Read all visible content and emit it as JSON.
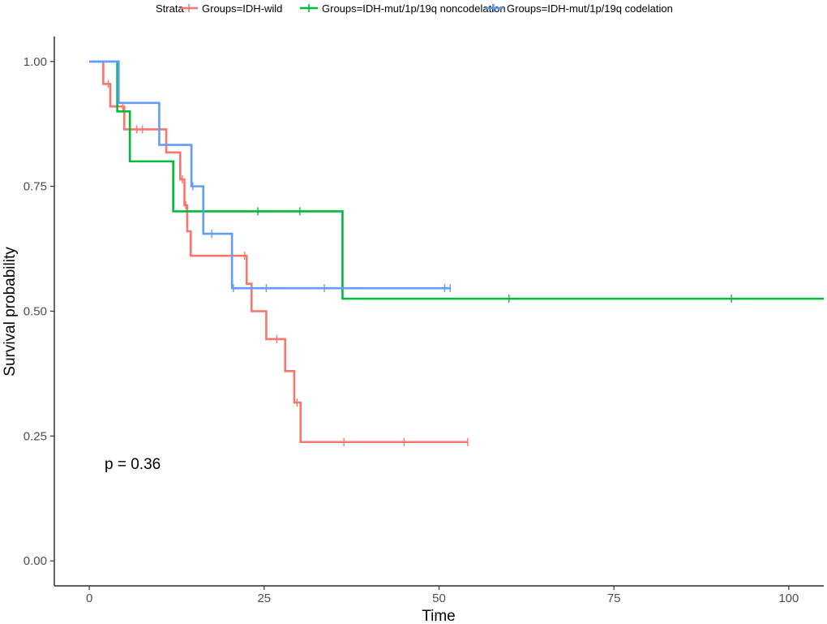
{
  "chart_data": {
    "type": "line",
    "subtype": "kaplan-meier step",
    "xlabel": "Time",
    "ylabel": "Survival probability",
    "xlim": [
      -5,
      105
    ],
    "ylim": [
      -0.05,
      1.05
    ],
    "xticks": [
      0,
      25,
      50,
      75,
      100
    ],
    "xtick_labels": [
      "0",
      "25",
      "50",
      "75",
      "100"
    ],
    "yticks": [
      0,
      0.25,
      0.5,
      0.75,
      1
    ],
    "ytick_labels": [
      "0.00",
      "0.25",
      "0.50",
      "0.75",
      "1.00"
    ],
    "grid": false,
    "legend": {
      "position": "top",
      "title": "Strata",
      "entries": [
        "Groups=IDH-wild",
        "Groups=IDH-mut/1p/19q noncodelation",
        "Groups=IDH-mut/1p/19q codelation"
      ]
    },
    "annotation": "p = 0.36",
    "series": [
      {
        "name": "Groups=IDH-wild",
        "color": "#F8766D",
        "steps": [
          [
            0,
            1.0
          ],
          [
            2,
            0.955
          ],
          [
            3,
            0.91
          ],
          [
            5,
            0.864
          ],
          [
            11,
            0.818
          ],
          [
            13,
            0.764
          ],
          [
            13.6,
            0.712
          ],
          [
            14,
            0.66
          ],
          [
            14.5,
            0.611
          ],
          [
            22.5,
            0.555
          ],
          [
            23.2,
            0.5
          ],
          [
            25.3,
            0.444
          ],
          [
            28,
            0.38
          ],
          [
            29.3,
            0.317
          ],
          [
            30.2,
            0.238
          ],
          [
            54.1,
            0.238
          ]
        ],
        "censored": [
          [
            2.7,
            0.955
          ],
          [
            4.8,
            0.91
          ],
          [
            6.8,
            0.864
          ],
          [
            7.6,
            0.864
          ],
          [
            13.3,
            0.764
          ],
          [
            13.8,
            0.712
          ],
          [
            22.2,
            0.611
          ],
          [
            26.8,
            0.444
          ],
          [
            29.7,
            0.317
          ],
          [
            36.4,
            0.238
          ],
          [
            45,
            0.238
          ],
          [
            54.1,
            0.238
          ]
        ]
      },
      {
        "name": "Groups=IDH-mut/1p/19q noncodelation",
        "color": "#00BA38",
        "steps": [
          [
            0,
            1.0
          ],
          [
            4,
            0.9
          ],
          [
            5.8,
            0.8
          ],
          [
            12,
            0.7
          ],
          [
            36.2,
            0.525
          ],
          [
            105,
            0.525
          ]
        ],
        "censored": [
          [
            24.1,
            0.7
          ],
          [
            30.1,
            0.7
          ],
          [
            60,
            0.525
          ],
          [
            91.8,
            0.525
          ]
        ]
      },
      {
        "name": "Groups=IDH-mut/1p/19q codelation",
        "color": "#619CFF",
        "steps": [
          [
            0,
            1.0
          ],
          [
            4.2,
            0.917
          ],
          [
            10,
            0.833
          ],
          [
            14.6,
            0.75
          ],
          [
            16.3,
            0.655
          ],
          [
            20.4,
            0.546
          ],
          [
            51.6,
            0.546
          ]
        ],
        "censored": [
          [
            14.8,
            0.75
          ],
          [
            17.5,
            0.655
          ],
          [
            20.6,
            0.546
          ],
          [
            25.3,
            0.546
          ],
          [
            33.6,
            0.546
          ],
          [
            50.8,
            0.546
          ],
          [
            51.6,
            0.546
          ]
        ]
      }
    ]
  }
}
